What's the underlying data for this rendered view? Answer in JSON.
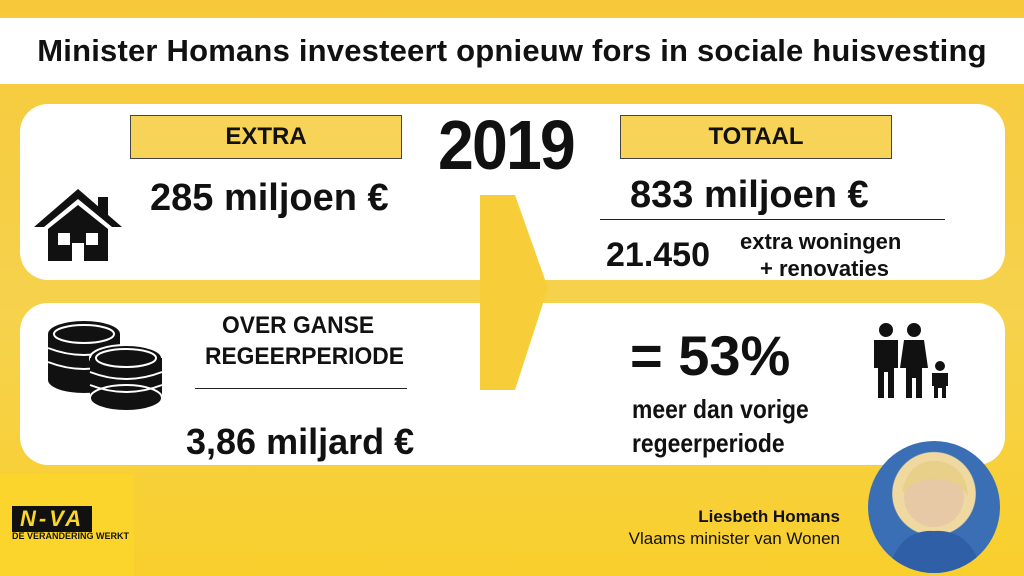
{
  "title": "Minister Homans investeert opnieuw fors in sociale huisvesting",
  "year": "2019",
  "extra": {
    "label": "EXTRA",
    "amount": "285 miljoen €"
  },
  "totaal": {
    "label": "TOTAAL",
    "amount": "833 miljoen €",
    "count": "21.450",
    "count_label_1": "extra woningen",
    "count_label_2": "+ renovaties"
  },
  "period": {
    "label_1": "OVER GANSE",
    "label_2": "REGEERPERIODE",
    "amount": "3,86 miljard €"
  },
  "increase": {
    "percent": "= 53%",
    "text_1": "meer dan vorige",
    "text_2": "regeerperiode"
  },
  "logo": {
    "name": "N-VA",
    "tagline": "DE VERANDERING WERKT"
  },
  "person": {
    "name": "Liesbeth Homans",
    "role": "Vlaams minister van Wonen"
  },
  "colors": {
    "accent": "#f7d357",
    "background": "#f7c93a"
  }
}
